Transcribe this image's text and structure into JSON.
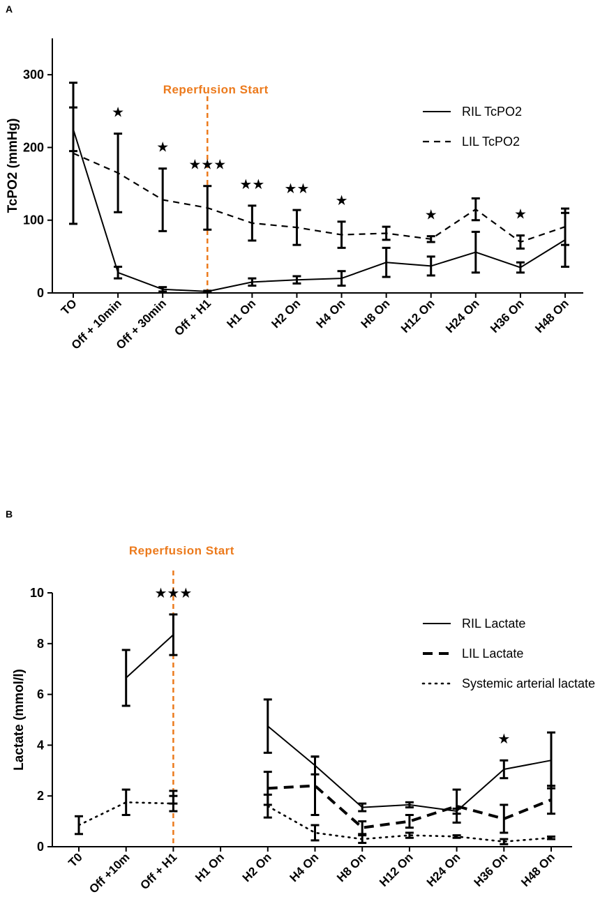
{
  "colors": {
    "axis": "#000000",
    "reperfusion": "#ec7a1c"
  },
  "chart_data": [
    {
      "panel_label": "A",
      "type": "line",
      "ylabel": "TcPO2 (mmHg)",
      "ylim": [
        0,
        350
      ],
      "yticks": [
        0,
        100,
        200,
        300
      ],
      "categories": [
        "TO",
        "Off + 10min",
        "Off + 30min",
        "Off + H1",
        "H1 On",
        "H2 On",
        "H4 On",
        "H8 On",
        "H12 On",
        "H24 On",
        "H36  On",
        "H48  On"
      ],
      "reperfusion_label": "Reperfusion  Start",
      "reperfusion_index": 3,
      "series": [
        {
          "name": "RIL TcPO2",
          "style": "solid",
          "values": [
            225,
            28,
            5,
            2,
            15,
            18,
            20,
            42,
            37,
            56,
            35,
            73
          ],
          "errors": [
            30,
            8,
            3,
            1,
            5,
            5,
            10,
            20,
            13,
            28,
            7,
            37
          ]
        },
        {
          "name": "LIL TcPO2",
          "style": "dashed",
          "values": [
            192,
            165,
            128,
            117,
            96,
            90,
            80,
            82,
            74,
            115,
            70,
            91
          ],
          "errors": [
            97,
            54,
            43,
            30,
            24,
            24,
            18,
            9,
            4,
            15,
            9,
            25
          ]
        }
      ],
      "annotations": [
        {
          "index": 1,
          "text": "★"
        },
        {
          "index": 2,
          "text": "★"
        },
        {
          "index": 3,
          "text": "★★★"
        },
        {
          "index": 4,
          "text": "★★"
        },
        {
          "index": 5,
          "text": "★★"
        },
        {
          "index": 6,
          "text": "★"
        },
        {
          "index": 8,
          "text": "★"
        },
        {
          "index": 10,
          "text": "★"
        }
      ]
    },
    {
      "panel_label": "B",
      "type": "line",
      "ylabel": "Lactate (mmol/l)",
      "ylim": [
        0,
        10
      ],
      "yticks": [
        0,
        2,
        4,
        6,
        8,
        10
      ],
      "categories": [
        "T0",
        "Off +10m",
        "Off + H1",
        "H1 On",
        "H2 On",
        "H4 On",
        "H8 On",
        "H12 On",
        "H24 On",
        "H36 On",
        "H48 On"
      ],
      "reperfusion_label": "Reperfusion  Start",
      "reperfusion_index": 2,
      "series": [
        {
          "name": "RIL Lactate",
          "style": "solid",
          "values": [
            null,
            6.65,
            8.35,
            null,
            4.75,
            3.2,
            1.55,
            1.65,
            1.4,
            3.05,
            3.4
          ],
          "errors": [
            null,
            1.1,
            0.8,
            null,
            1.05,
            0.35,
            0.15,
            0.1,
            0.1,
            0.35,
            1.1
          ]
        },
        {
          "name": "LIL Lactate",
          "style": "bold-dashed",
          "values": [
            null,
            null,
            1.95,
            null,
            2.3,
            2.4,
            0.75,
            1.0,
            1.6,
            1.1,
            1.85
          ],
          "errors": [
            null,
            null,
            0.25,
            null,
            0.65,
            1.15,
            0.25,
            0.25,
            0.65,
            0.55,
            0.55
          ]
        },
        {
          "name": "Systemic arterial lactate",
          "style": "dotted",
          "values": [
            0.85,
            1.75,
            1.7,
            null,
            1.6,
            0.55,
            0.3,
            0.45,
            0.4,
            0.2,
            0.35
          ],
          "errors": [
            0.35,
            0.5,
            0.3,
            null,
            0.45,
            0.3,
            0.15,
            0.1,
            0.05,
            0.1,
            0.05
          ]
        }
      ],
      "annotations": [
        {
          "index": 2,
          "text": "★★★"
        },
        {
          "index": 9,
          "text": "★"
        }
      ]
    }
  ]
}
